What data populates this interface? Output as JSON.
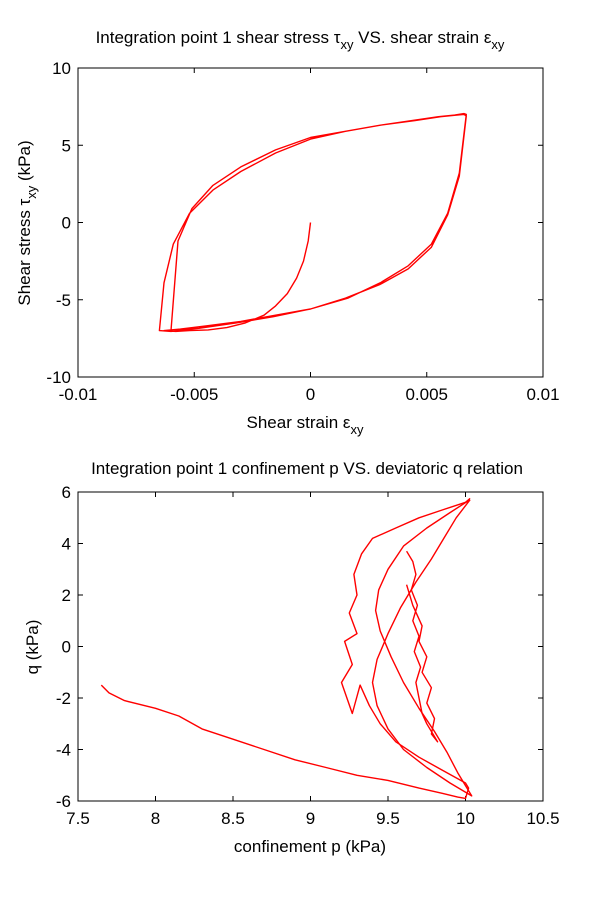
{
  "chart_data": [
    {
      "type": "line",
      "title": "Integration point 1 shear stress τxy VS. shear strain εxy",
      "title_parts": {
        "pre": "Integration point 1 shear stress τ",
        "sub1": "xy",
        "mid": " VS. shear strain ε",
        "sub2": "xy"
      },
      "xlabel": "Shear strain εxy",
      "xlabel_parts": {
        "pre": "Shear strain ε",
        "sub": "xy"
      },
      "ylabel": "Shear stress τxy (kPa)",
      "ylabel_parts": {
        "pre": "Shear stress τ",
        "sub": "xy",
        "post": " (kPa)"
      },
      "xlim": [
        -0.01,
        0.01
      ],
      "ylim": [
        -10,
        10
      ],
      "xticks": [
        -0.01,
        -0.005,
        0,
        0.005,
        0.01
      ],
      "xtick_labels": [
        "-0.01",
        "-0.005",
        "0",
        "0.005",
        "0.01"
      ],
      "yticks": [
        -10,
        -5,
        0,
        5,
        10
      ],
      "ytick_labels": [
        "-10",
        "-5",
        "0",
        "5",
        "10"
      ],
      "grid": false,
      "color": "#ff0000",
      "series": [
        {
          "x": [
            0,
            -0.0001,
            -0.0003,
            -0.0006,
            -0.001,
            -0.0015,
            -0.002,
            -0.0028,
            -0.0036,
            -0.0044,
            -0.0052,
            -0.0058,
            -0.0063,
            -0.0056,
            -0.0045,
            -0.003,
            -0.0015,
            0,
            0.0015,
            0.003,
            0.0042,
            0.0052,
            0.0059,
            0.0064,
            0.0067,
            0.0066,
            0.0063,
            0.0056,
            0.0045,
            0.003,
            0.0015,
            0,
            -0.0015,
            -0.003,
            -0.0042,
            -0.0052,
            -0.0059,
            -0.0063,
            -0.0065,
            -0.006,
            -0.0048,
            -0.0032,
            -0.0016,
            0,
            0.0016,
            0.003,
            0.0042,
            0.0052,
            0.0059,
            0.0064,
            0.0067,
            0.0066,
            0.0062,
            0.0055,
            0.0044,
            0.003,
            0.0015,
            0,
            -0.0015,
            -0.003,
            -0.0042,
            -0.0051,
            -0.0057,
            -0.006
          ],
          "y": [
            0,
            -1.2,
            -2.5,
            -3.6,
            -4.6,
            -5.4,
            -6.0,
            -6.5,
            -6.8,
            -6.95,
            -7.0,
            -7.05,
            -7.0,
            -6.9,
            -6.7,
            -6.4,
            -6.0,
            -5.6,
            -4.9,
            -4.0,
            -3.0,
            -1.6,
            0.5,
            3.0,
            6.9,
            7.0,
            6.95,
            6.85,
            6.6,
            6.3,
            5.9,
            5.4,
            4.5,
            3.3,
            2.1,
            0.6,
            -1.4,
            -3.9,
            -7.0,
            -7.05,
            -6.85,
            -6.5,
            -6.1,
            -5.6,
            -4.9,
            -3.9,
            -2.8,
            -1.4,
            0.6,
            3.2,
            7.0,
            7.05,
            6.95,
            6.85,
            6.6,
            6.3,
            5.9,
            5.5,
            4.7,
            3.6,
            2.4,
            0.9,
            -1.2,
            -7.0
          ]
        }
      ]
    },
    {
      "type": "line",
      "title": "Integration point 1 confinement p VS. deviatoric q relation",
      "xlabel": "confinement p (kPa)",
      "ylabel": "q (kPa)",
      "xlim": [
        7.5,
        10.5
      ],
      "ylim": [
        -6,
        6
      ],
      "xticks": [
        7.5,
        8,
        8.5,
        9,
        9.5,
        10,
        10.5
      ],
      "xtick_labels": [
        "7.5",
        "8",
        "8.5",
        "9",
        "9.5",
        "10",
        "10.5"
      ],
      "yticks": [
        -6,
        -4,
        -2,
        0,
        2,
        4,
        6
      ],
      "ytick_labels": [
        "-6",
        "-4",
        "-2",
        "0",
        "2",
        "4",
        "6"
      ],
      "grid": false,
      "color": "#ff0000",
      "series": [
        {
          "x": [
            7.65,
            7.7,
            7.8,
            8.0,
            8.15,
            8.3,
            8.5,
            8.7,
            8.9,
            9.1,
            9.3,
            9.5,
            9.7,
            9.85,
            9.95,
            10.0,
            10.02,
            10.0,
            9.85,
            9.7,
            9.55,
            9.45,
            9.38,
            9.32,
            9.27,
            9.2,
            9.27,
            9.22,
            9.3,
            9.25,
            9.3,
            9.28,
            9.33,
            9.4,
            9.55,
            9.7,
            9.85,
            10.0,
            10.03
          ],
          "y": [
            -1.5,
            -1.8,
            -2.1,
            -2.4,
            -2.7,
            -3.2,
            -3.6,
            -4.0,
            -4.4,
            -4.7,
            -5.0,
            -5.2,
            -5.5,
            -5.7,
            -5.85,
            -5.9,
            -5.5,
            -5.3,
            -4.8,
            -4.3,
            -3.7,
            -3.0,
            -2.3,
            -1.5,
            -2.6,
            -1.4,
            -0.7,
            0.2,
            0.5,
            1.3,
            2.0,
            2.8,
            3.6,
            4.2,
            4.6,
            5.0,
            5.3,
            5.6,
            5.75
          ]
        },
        {
          "x": [
            10.03,
            9.9,
            9.75,
            9.6,
            9.5,
            9.44,
            9.42,
            9.45,
            9.52,
            9.6,
            9.7,
            9.8,
            9.88,
            9.95,
            10.02,
            10.04,
            9.9,
            9.75,
            9.6,
            9.5,
            9.43,
            9.4,
            9.43,
            9.5,
            9.58,
            9.68,
            9.78,
            9.86,
            9.94,
            10.03
          ],
          "y": [
            5.7,
            5.2,
            4.6,
            3.9,
            3.0,
            2.2,
            1.4,
            0.6,
            -0.4,
            -1.4,
            -2.4,
            -3.3,
            -4.1,
            -4.9,
            -5.6,
            -5.8,
            -5.3,
            -4.7,
            -4.0,
            -3.2,
            -2.3,
            -1.4,
            -0.5,
            0.5,
            1.5,
            2.5,
            3.4,
            4.2,
            5.0,
            5.7
          ]
        },
        {
          "x": [
            9.62,
            9.66,
            9.68,
            9.65,
            9.69,
            9.66,
            9.7,
            9.67,
            9.71,
            9.68,
            9.7,
            9.72,
            9.75,
            9.8,
            9.82,
            9.78,
            9.8,
            9.75,
            9.78,
            9.72,
            9.75,
            9.7,
            9.72,
            9.66,
            9.62
          ],
          "y": [
            3.7,
            3.3,
            2.8,
            2.2,
            1.6,
            1.0,
            0.4,
            -0.2,
            -0.8,
            -1.4,
            -2.0,
            -2.6,
            -3.0,
            -3.5,
            -3.7,
            -3.4,
            -2.8,
            -2.2,
            -1.6,
            -1.0,
            -0.4,
            0.2,
            0.8,
            1.6,
            2.4
          ]
        }
      ]
    }
  ]
}
